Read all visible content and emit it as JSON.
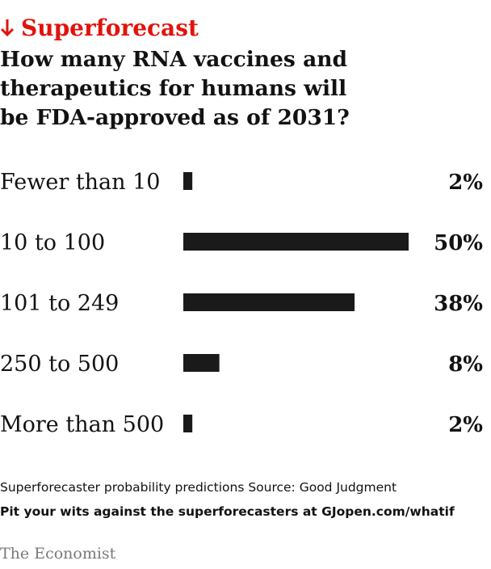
{
  "kicker": {
    "label": "Superforecast",
    "icon": "arrow-down-icon",
    "color": "#e3120b"
  },
  "title_lines": [
    "How many RNA vaccines and",
    "therapeutics for humans will",
    "be FDA-approved as of 2031?"
  ],
  "chart_data": {
    "type": "bar",
    "orientation": "horizontal",
    "categories": [
      "Fewer than 10",
      "10 to 100",
      "101 to 249",
      "250 to 500",
      "More than 500"
    ],
    "values": [
      2,
      50,
      38,
      8,
      2
    ],
    "value_labels": [
      "2%",
      "50%",
      "38%",
      "8%",
      "2%"
    ],
    "unit": "%",
    "xlim": [
      0,
      50
    ],
    "bar_color": "#1a1a1a",
    "grid": false,
    "legend": "none"
  },
  "footer": {
    "note": "Superforecaster probability predictions Source: Good Judgment",
    "cta": "Pit your wits against the superforecasters at GJopen.com/whatif",
    "brand": "The Economist"
  }
}
